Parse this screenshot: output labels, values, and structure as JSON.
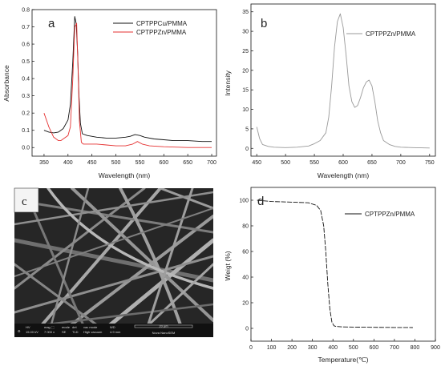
{
  "panels": {
    "a": {
      "letter": "a"
    },
    "b": {
      "letter": "b"
    },
    "c": {
      "letter": "c",
      "info_bar": [
        {
          "top": "HV",
          "bottom": "15.00 kV"
        },
        {
          "top": "mag ⬚",
          "bottom": "7 000 x"
        },
        {
          "top": "mode",
          "bottom": "SE"
        },
        {
          "top": "det",
          "bottom": "TLD"
        },
        {
          "top": "vac mode",
          "bottom": "High vacuum"
        },
        {
          "top": "WD",
          "bottom": "4.9 mm"
        }
      ],
      "scale_label": "20 μm",
      "instrument": "Nova NanoSEM"
    },
    "d": {
      "letter": "d"
    }
  },
  "chart_data": [
    {
      "panel": "a",
      "type": "line",
      "xlabel": "Wavelength (nm)",
      "ylabel": "Absorbance",
      "xlim": [
        325,
        710
      ],
      "ylim": [
        -0.05,
        0.8
      ],
      "xticks": [
        350,
        400,
        450,
        500,
        550,
        600,
        650,
        700
      ],
      "yticks": [
        0.0,
        0.1,
        0.2,
        0.3,
        0.4,
        0.5,
        0.6,
        0.7,
        0.8
      ],
      "ytick_labels": [
        "0.0",
        "0.1",
        "0.2",
        "0.3",
        "0.4",
        "0.5",
        "0.6",
        "0.7",
        "0.8"
      ],
      "legend_position": "top-right",
      "series": [
        {
          "name": "CPTPPCu/PMMA",
          "color": "#111111",
          "x": [
            350,
            360,
            370,
            380,
            390,
            400,
            405,
            410,
            414,
            417,
            420,
            423,
            426,
            430,
            440,
            460,
            480,
            500,
            520,
            530,
            540,
            550,
            560,
            580,
            600,
            620,
            650,
            680,
            700
          ],
          "y": [
            0.1,
            0.09,
            0.085,
            0.09,
            0.11,
            0.16,
            0.25,
            0.5,
            0.76,
            0.72,
            0.55,
            0.3,
            0.14,
            0.08,
            0.07,
            0.06,
            0.055,
            0.055,
            0.06,
            0.065,
            0.075,
            0.07,
            0.06,
            0.05,
            0.045,
            0.04,
            0.04,
            0.035,
            0.035
          ]
        },
        {
          "name": "CPTPPZn/PMMA",
          "color": "#e53030",
          "x": [
            350,
            360,
            370,
            380,
            385,
            390,
            400,
            405,
            410,
            414,
            418,
            421,
            424,
            428,
            432,
            440,
            460,
            480,
            500,
            520,
            535,
            545,
            555,
            570,
            600,
            650,
            700
          ],
          "y": [
            0.2,
            0.12,
            0.06,
            0.04,
            0.04,
            0.05,
            0.07,
            0.12,
            0.4,
            0.7,
            0.72,
            0.45,
            0.15,
            0.03,
            0.02,
            0.02,
            0.02,
            0.015,
            0.01,
            0.01,
            0.02,
            0.035,
            0.02,
            0.01,
            0.005,
            0.0,
            0.0
          ]
        }
      ]
    },
    {
      "panel": "b",
      "type": "line",
      "xlabel": "Wavelength (nm)",
      "ylabel": "Intensity",
      "xlim": [
        440,
        760
      ],
      "ylim": [
        -2,
        37
      ],
      "xticks": [
        450,
        500,
        550,
        600,
        650,
        700,
        750
      ],
      "yticks": [
        0,
        5,
        10,
        15,
        20,
        25,
        30,
        35
      ],
      "ytick_labels": [
        "0",
        "5",
        "10",
        "15",
        "20",
        "25",
        "30",
        "35"
      ],
      "legend_position": "top-right",
      "series": [
        {
          "name": "CPTPPZn/PMMA",
          "color": "#999999",
          "x": [
            450,
            455,
            460,
            470,
            480,
            500,
            520,
            540,
            550,
            560,
            570,
            575,
            580,
            585,
            590,
            595,
            600,
            605,
            610,
            615,
            620,
            625,
            630,
            635,
            640,
            645,
            650,
            655,
            660,
            665,
            670,
            680,
            690,
            700,
            720,
            750
          ],
          "y": [
            5.5,
            2.5,
            1.0,
            0.5,
            0.3,
            0.2,
            0.3,
            0.6,
            1.2,
            2.0,
            4.0,
            8.0,
            16.0,
            26.0,
            32.5,
            34.5,
            31.0,
            24.0,
            16.0,
            12.0,
            10.5,
            11.0,
            13.0,
            15.5,
            17.0,
            17.5,
            16.0,
            12.0,
            7.0,
            4.0,
            2.0,
            1.0,
            0.5,
            0.3,
            0.2,
            0.1
          ]
        }
      ]
    },
    {
      "panel": "d",
      "type": "line",
      "xlabel": "Temperature(℃)",
      "ylabel": "Weigt (%)",
      "xlim": [
        0,
        900
      ],
      "ylim": [
        -10,
        110
      ],
      "xticks": [
        0,
        100,
        200,
        300,
        400,
        500,
        600,
        700,
        800,
        900
      ],
      "yticks": [
        0,
        20,
        40,
        60,
        80,
        100
      ],
      "ytick_labels": [
        "0",
        "20",
        "40",
        "60",
        "80",
        "100"
      ],
      "legend_position": "top-right",
      "series": [
        {
          "name": "CPTPPZn/PMMA",
          "color": "#111111",
          "x": [
            30,
            100,
            200,
            280,
            320,
            340,
            355,
            365,
            375,
            385,
            395,
            405,
            415,
            440,
            500,
            600,
            700,
            790
          ],
          "y": [
            100,
            99,
            98.5,
            98,
            96,
            92,
            80,
            60,
            35,
            15,
            5,
            2,
            1.5,
            1.2,
            1.0,
            0.8,
            0.7,
            0.6
          ]
        }
      ]
    }
  ]
}
